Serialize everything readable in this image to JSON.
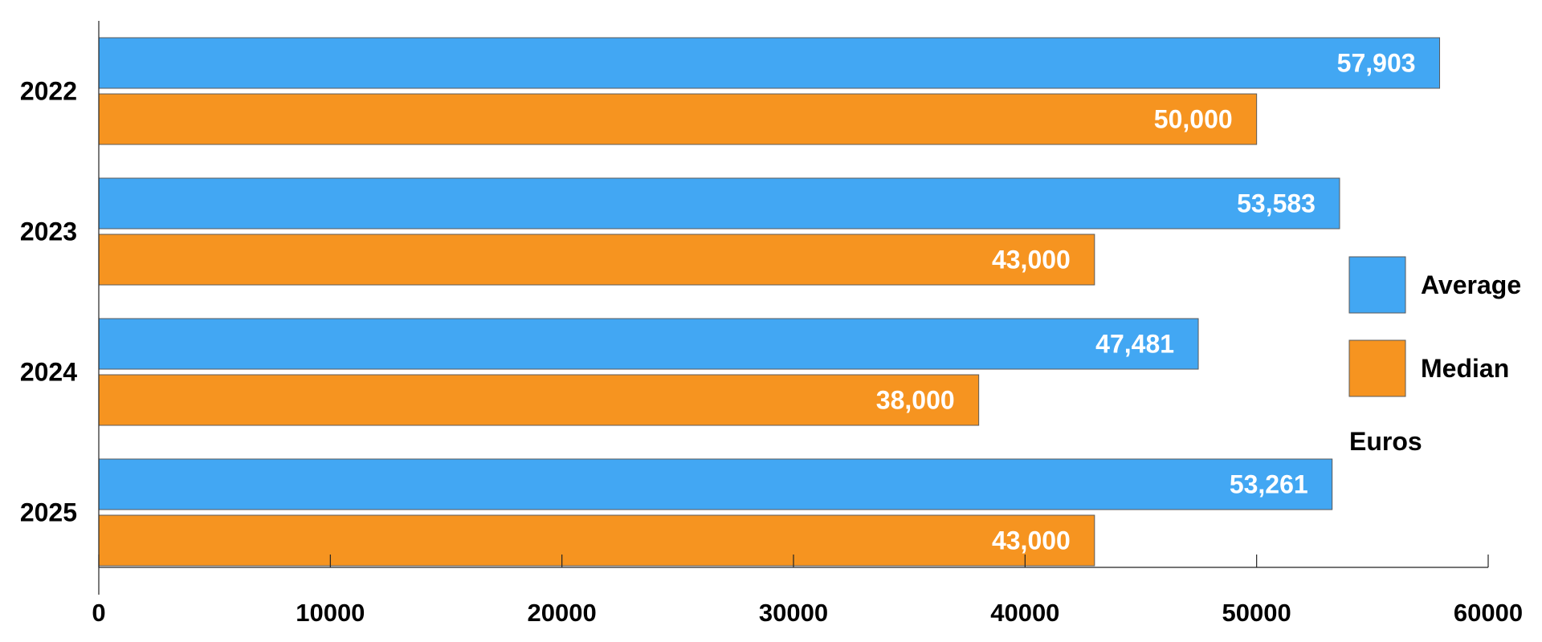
{
  "chart_data": {
    "type": "bar",
    "orientation": "horizontal",
    "categories": [
      "2022",
      "2023",
      "2024",
      "2025"
    ],
    "series": [
      {
        "name": "Average",
        "color": "#42a7f3",
        "values": [
          57903,
          53583,
          47481,
          53261
        ],
        "labels": [
          "57,903",
          "53,583",
          "47,481",
          "53,261"
        ]
      },
      {
        "name": "Median",
        "color": "#f69420",
        "values": [
          50000,
          43000,
          38000,
          43000
        ],
        "labels": [
          "50,000",
          "43,000",
          "38,000",
          "43,000"
        ]
      }
    ],
    "title": "",
    "xlabel": "",
    "ylabel": "",
    "xlim": [
      0,
      60000
    ],
    "xticks": [
      0,
      10000,
      20000,
      30000,
      40000,
      50000,
      60000
    ],
    "xtick_labels": [
      "0",
      "10000",
      "20000",
      "30000",
      "40000",
      "50000",
      "60000"
    ],
    "grid": false,
    "legend_position": "right",
    "legend_note": "Euros"
  }
}
